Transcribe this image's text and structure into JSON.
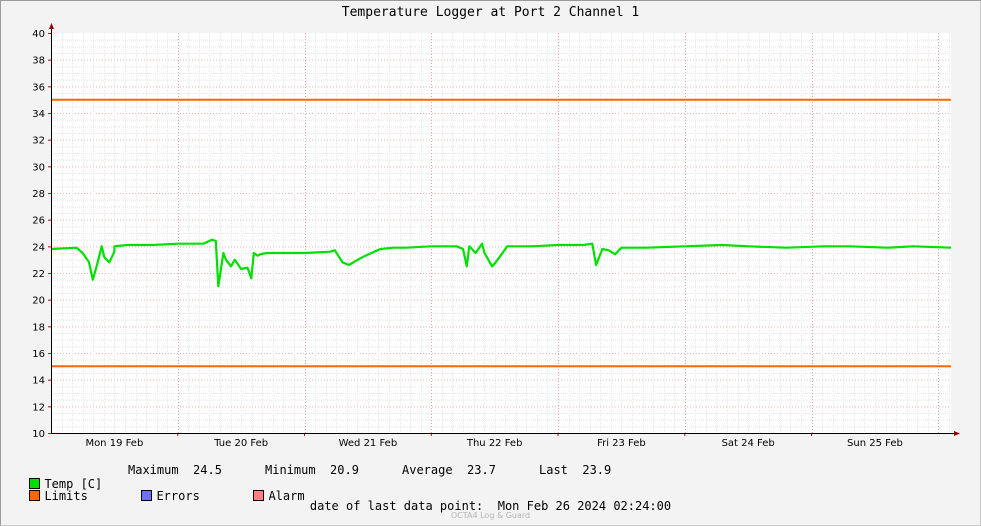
{
  "chart_data": {
    "type": "line",
    "title": "Temperature Logger at Port 2 Channel 1",
    "ylim": [
      10,
      40
    ],
    "yticks": [
      10,
      12,
      14,
      16,
      18,
      20,
      22,
      24,
      26,
      28,
      30,
      32,
      34,
      36,
      38,
      40
    ],
    "xlim": [
      0,
      7.1
    ],
    "xtick_labels": [
      "Mon 19 Feb",
      "Tue 20 Feb",
      "Wed 21 Feb",
      "Thu 22 Feb",
      "Fri 23 Feb",
      "Sat 24 Feb",
      "Sun 25 Feb"
    ],
    "grid": true,
    "series": [
      {
        "name": "Temp [C]",
        "color": "#00e000",
        "x": [
          0,
          0.2,
          0.25,
          0.3,
          0.33,
          0.36,
          0.4,
          0.42,
          0.46,
          0.5,
          0.5,
          0.6,
          0.8,
          1.0,
          1.2,
          1.27,
          1.3,
          1.32,
          1.36,
          1.38,
          1.42,
          1.45,
          1.5,
          1.55,
          1.58,
          1.6,
          1.63,
          1.65,
          1.7,
          1.8,
          2.0,
          2.2,
          2.24,
          2.3,
          2.35,
          2.42,
          2.48,
          2.55,
          2.6,
          2.7,
          2.8,
          3.0,
          3.2,
          3.25,
          3.28,
          3.3,
          3.35,
          3.4,
          3.42,
          3.48,
          3.5,
          3.6,
          3.8,
          4.0,
          4.2,
          4.27,
          4.3,
          4.35,
          4.4,
          4.45,
          4.5,
          4.55,
          4.7,
          5.0,
          5.3,
          5.5,
          5.8,
          6.1,
          6.3,
          6.6,
          6.8,
          7.1
        ],
        "y": [
          23.8,
          23.9,
          23.5,
          22.8,
          21.5,
          22.5,
          24.0,
          23.2,
          22.8,
          23.6,
          24.0,
          24.1,
          24.1,
          24.2,
          24.2,
          24.5,
          24.4,
          21.0,
          23.5,
          23.0,
          22.5,
          23.0,
          22.3,
          22.4,
          21.6,
          23.5,
          23.3,
          23.4,
          23.5,
          23.5,
          23.5,
          23.6,
          23.7,
          22.8,
          22.6,
          23.0,
          23.3,
          23.6,
          23.8,
          23.9,
          23.9,
          24.0,
          24.0,
          23.8,
          22.5,
          24.0,
          23.5,
          24.2,
          23.5,
          22.5,
          22.7,
          24.0,
          24.0,
          24.1,
          24.1,
          24.2,
          22.6,
          23.8,
          23.7,
          23.4,
          23.9,
          23.9,
          23.9,
          24.0,
          24.1,
          24.0,
          23.9,
          24.0,
          24.0,
          23.9,
          24.0,
          23.9
        ]
      },
      {
        "name": "Limits",
        "color": "#ff6600",
        "x": [
          0,
          7.1
        ],
        "y": [
          35,
          35
        ]
      },
      {
        "name": "Limits",
        "color": "#ff6600",
        "x": [
          0,
          7.1
        ],
        "y": [
          15,
          15
        ]
      }
    ]
  },
  "legend": {
    "temp_label": "Temp [C]",
    "temp_color": "#00e000",
    "maximum_label": "Maximum",
    "maximum_value": "24.5",
    "minimum_label": "Minimum",
    "minimum_value": "20.9",
    "average_label": "Average",
    "average_value": "23.7",
    "last_label": "Last",
    "last_value": "23.9",
    "limits_label": "Limits",
    "limits_color": "#ff6600",
    "errors_label": "Errors",
    "errors_color": "#7070ff",
    "alarm_label": "Alarm",
    "alarm_color": "#ff8080"
  },
  "footer": {
    "label": "date of last data point:",
    "value": "Mon Feb 26 2024 02:24:00",
    "watermark": "OCTA4 Log & Guard"
  }
}
